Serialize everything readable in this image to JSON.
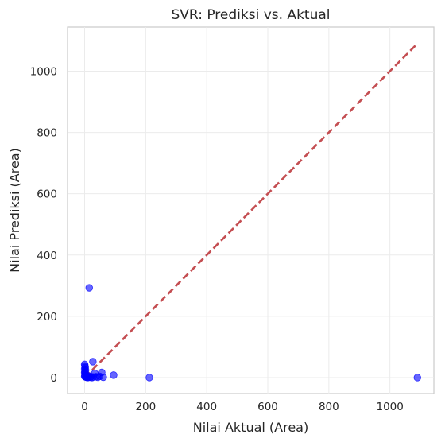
{
  "chart_data": {
    "type": "scatter",
    "title": "SVR: Prediksi vs. Aktual",
    "xlabel": "Nilai Aktual (Area)",
    "ylabel": "Nilai Prediksi (Area)",
    "xlim": [
      -56,
      1144
    ],
    "ylim": [
      -52,
      1144
    ],
    "xticks": [
      0,
      200,
      400,
      600,
      800,
      1000
    ],
    "yticks": [
      0,
      200,
      400,
      600,
      800,
      1000
    ],
    "xtick_labels": [
      "0",
      "200",
      "400",
      "600",
      "800",
      "1000"
    ],
    "ytick_labels": [
      "0",
      "200",
      "400",
      "600",
      "800",
      "1000"
    ],
    "grid": true,
    "colors": {
      "points": "#0000ff",
      "reference_line": "#c44e52",
      "grid": "#ebebeb",
      "spine": "#cccccc"
    },
    "reference_line": {
      "style": "dashed",
      "x": [
        0,
        1091
      ],
      "y": [
        0,
        1091
      ]
    },
    "points": [
      {
        "x": 15,
        "y": 293
      },
      {
        "x": 27,
        "y": 52
      },
      {
        "x": 0,
        "y": 43
      },
      {
        "x": 1,
        "y": 38
      },
      {
        "x": 2,
        "y": 33
      },
      {
        "x": 0,
        "y": 28
      },
      {
        "x": 3,
        "y": 24
      },
      {
        "x": 1,
        "y": 20
      },
      {
        "x": 0,
        "y": 16
      },
      {
        "x": 2,
        "y": 13
      },
      {
        "x": 4,
        "y": 10
      },
      {
        "x": 1,
        "y": 7
      },
      {
        "x": 0,
        "y": 4
      },
      {
        "x": 3,
        "y": 2
      },
      {
        "x": 6,
        "y": 1
      },
      {
        "x": 8,
        "y": 3
      },
      {
        "x": 10,
        "y": 0
      },
      {
        "x": 12,
        "y": 2
      },
      {
        "x": 15,
        "y": 5
      },
      {
        "x": 18,
        "y": 1
      },
      {
        "x": 21,
        "y": 3
      },
      {
        "x": 24,
        "y": 0
      },
      {
        "x": 28,
        "y": 2
      },
      {
        "x": 33,
        "y": 14
      },
      {
        "x": 37,
        "y": 3
      },
      {
        "x": 43,
        "y": 1
      },
      {
        "x": 49,
        "y": 4
      },
      {
        "x": 56,
        "y": 17
      },
      {
        "x": 61,
        "y": 1
      },
      {
        "x": 95,
        "y": 8
      },
      {
        "x": 212,
        "y": 0
      },
      {
        "x": 1090,
        "y": 0
      }
    ]
  }
}
